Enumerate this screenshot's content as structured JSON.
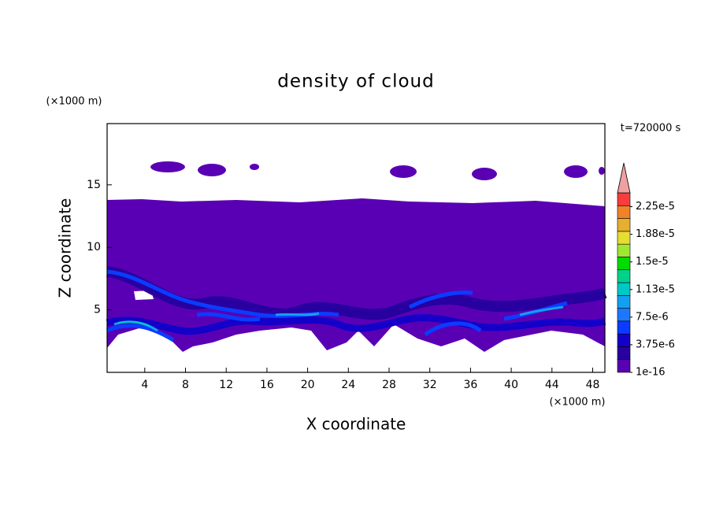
{
  "chart_data": {
    "type": "contour",
    "title": "density of cloud",
    "x_label": "X coordinate",
    "y_label": "Z coordinate",
    "x_unit": "(×1000 m)",
    "y_unit": "(×1000 m)",
    "time_label": "t=720000 s",
    "xlim": [
      0.3,
      49.2
    ],
    "xticks": [
      4,
      8,
      12,
      16,
      20,
      24,
      28,
      32,
      36,
      40,
      44,
      48
    ],
    "ylim": [
      0,
      19.9
    ],
    "yticks": [
      5,
      10,
      15
    ],
    "colorbar": {
      "clim": [
        0,
        2.4375e-05
      ],
      "colors": [
        "#5a00b4",
        "#2800a0",
        "#1400c8",
        "#0a3cff",
        "#1e78ff",
        "#14a0f0",
        "#00c8c8",
        "#00d28c",
        "#00dc00",
        "#a0e632",
        "#e6dc32",
        "#e6af2d",
        "#f08228",
        "#fa3c3c"
      ],
      "extend_color": "#f0a0a0",
      "ticks": [
        {
          "value": 1e-16,
          "label": "1e-16"
        },
        {
          "value": 3.75e-06,
          "label": "3.75e-6"
        },
        {
          "value": 7.5e-06,
          "label": "7.5e-6"
        },
        {
          "value": 1.125e-05,
          "label": "1.13e-5"
        },
        {
          "value": 1.5e-05,
          "label": "1.5e-5"
        },
        {
          "value": 1.875e-05,
          "label": "1.88e-5"
        },
        {
          "value": 2.25e-05,
          "label": "2.25e-5"
        }
      ]
    }
  }
}
